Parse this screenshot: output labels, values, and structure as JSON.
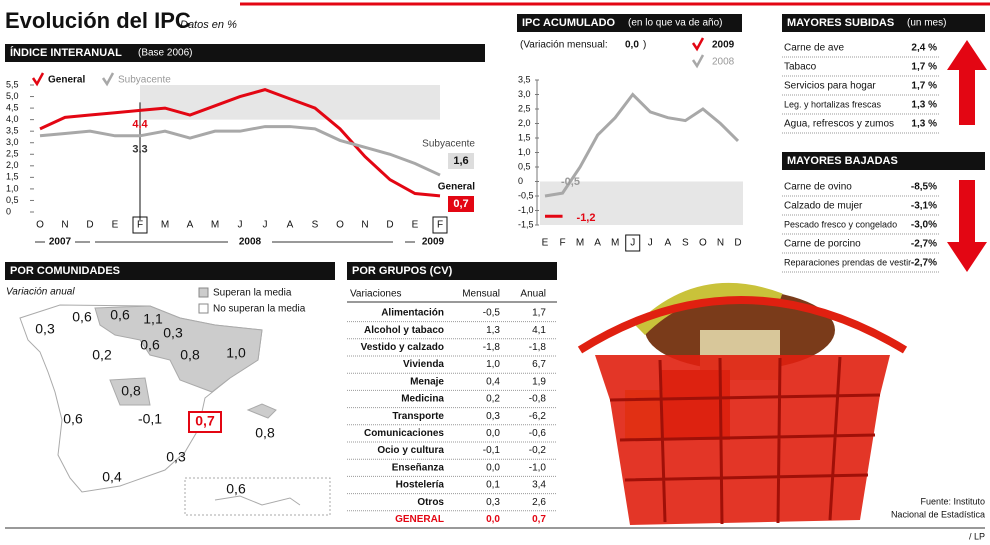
{
  "header": {
    "title": "Evolución del IPC",
    "subtitle": "Datos en %"
  },
  "chart_data": [
    {
      "type": "line",
      "title": "ÍNDICE INTERANUAL",
      "title_note": "(Base 2006)",
      "categories": [
        "O",
        "N",
        "D",
        "E",
        "F",
        "M",
        "A",
        "M",
        "J",
        "J",
        "A",
        "S",
        "O",
        "N",
        "D",
        "E",
        "F"
      ],
      "year_labels": [
        "2007",
        "2008",
        "2009"
      ],
      "series": [
        {
          "name": "General",
          "color": "#e30613",
          "values": [
            3.6,
            4.1,
            4.2,
            4.3,
            4.4,
            4.5,
            4.2,
            4.6,
            5.0,
            5.3,
            4.9,
            4.5,
            3.6,
            2.4,
            1.4,
            0.8,
            0.7
          ],
          "value_labels": [
            null,
            null,
            null,
            null,
            "4,4",
            null,
            null,
            null,
            null,
            null,
            null,
            null,
            null,
            null,
            null,
            null,
            "0,7"
          ]
        },
        {
          "name": "Subyacente",
          "color": "#a8a8a8",
          "values": [
            3.3,
            3.4,
            3.5,
            3.3,
            3.3,
            3.5,
            3.2,
            3.5,
            3.5,
            3.7,
            3.7,
            3.6,
            3.1,
            2.8,
            2.5,
            2.1,
            1.6
          ],
          "value_labels": [
            null,
            null,
            null,
            null,
            "3,3",
            null,
            null,
            null,
            null,
            null,
            null,
            null,
            null,
            null,
            null,
            null,
            "1,6"
          ]
        }
      ],
      "ylim": [
        0,
        5.5
      ],
      "yticks": [
        0,
        {
          "value": 0.5,
          "label": "0,5"
        },
        {
          "value": 1,
          "label": "1,0"
        },
        {
          "value": 1.5,
          "label": "1,5"
        },
        {
          "value": 2,
          "label": "2,0"
        },
        {
          "value": 2.5,
          "label": "2,5"
        },
        {
          "value": 3,
          "label": "3,0"
        },
        {
          "value": 3.5,
          "label": "3,5"
        },
        {
          "value": 4,
          "label": "4,0"
        },
        {
          "value": 4.5,
          "label": "4,5"
        },
        {
          "value": 5,
          "label": "5,0"
        },
        {
          "value": 5.5,
          "label": "5,5"
        }
      ]
    },
    {
      "type": "line",
      "title": "IPC ACUMULADO",
      "title_note": "(en lo que va de año)",
      "note": "(Variación mensual:",
      "note_value": "0,0",
      "note_end": ")",
      "categories": [
        "E",
        "F",
        "M",
        "A",
        "M",
        "J",
        "J",
        "A",
        "S",
        "O",
        "N",
        "D"
      ],
      "series": [
        {
          "name": "2009",
          "color": "#e30613",
          "values": [
            -1.2,
            -1.2,
            null,
            null,
            null,
            null,
            null,
            null,
            null,
            null,
            null,
            null
          ],
          "value_labels": [
            null,
            "-1,2",
            null,
            null,
            null,
            null,
            null,
            null,
            null,
            null,
            null,
            null
          ]
        },
        {
          "name": "2008",
          "color": "#a8a8a8",
          "values": [
            -0.5,
            -0.4,
            0.5,
            1.6,
            2.2,
            3.0,
            2.4,
            2.2,
            2.1,
            2.5,
            2.0,
            1.4
          ],
          "value_labels": [
            "-0,5",
            null,
            null,
            null,
            null,
            null,
            null,
            null,
            null,
            null,
            null,
            null
          ]
        }
      ],
      "ylim": [
        -1.5,
        3.5
      ],
      "yticks": [
        {
          "value": -1.5,
          "label": "-1,5"
        },
        {
          "value": -1,
          "label": "-1,0"
        },
        {
          "value": -0.5,
          "label": "-0,5"
        },
        0,
        {
          "value": 0.5,
          "label": "0,5"
        },
        {
          "value": 1,
          "label": "1,0"
        },
        {
          "value": 1.5,
          "label": "1,5"
        },
        {
          "value": 2,
          "label": "2,0"
        },
        {
          "value": 2.5,
          "label": "2,5"
        },
        {
          "value": 3,
          "label": "3,0"
        },
        {
          "value": 3.5,
          "label": "3,5"
        }
      ]
    }
  ],
  "subidas": {
    "title": "MAYORES SUBIDAS",
    "title_note": "(un mes)",
    "rows": [
      [
        "Carne de ave",
        "2,4 %"
      ],
      [
        "Tabaco",
        "1,7 %"
      ],
      [
        "Servicios para hogar",
        "1,7 %"
      ],
      [
        "Leg. y hortalizas frescas",
        "1,3 %"
      ],
      [
        "Agua, refrescos y zumos",
        "1,3 %"
      ]
    ]
  },
  "bajadas": {
    "title": "MAYORES BAJADAS",
    "rows": [
      [
        "Carne de ovino",
        "-8,5%"
      ],
      [
        "Calzado de mujer",
        "-3,1%"
      ],
      [
        "Pescado fresco y congelado",
        "-3,0%"
      ],
      [
        "Carne de porcino",
        "-2,7%"
      ],
      [
        "Reparaciones prendas de vestir",
        "-2,7%"
      ]
    ]
  },
  "comunidades": {
    "title": "POR COMUNIDADES",
    "subtitle": "Variación anual",
    "legend": [
      "Superan la media",
      "No superan la media"
    ],
    "values": [
      "0,3",
      "0,6",
      "0,6",
      "1,1",
      "0,3",
      "0,2",
      "0,6",
      "0,8",
      "1,0",
      "0,8",
      "0,6",
      "-0,1",
      "0,7",
      "0,8",
      "0,3",
      "0,4",
      "0,6"
    ]
  },
  "grupos": {
    "title": "POR GRUPOS (CV)",
    "columns": [
      "Variaciones",
      "Mensual",
      "Anual"
    ],
    "rows": [
      [
        "Alimentación",
        "-0,5",
        "1,7"
      ],
      [
        "Alcohol y tabaco",
        "1,3",
        "4,1"
      ],
      [
        "Vestido y calzado",
        "-1,8",
        "-1,8"
      ],
      [
        "Vivienda",
        "1,0",
        "6,7"
      ],
      [
        "Menaje",
        "0,4",
        "1,9"
      ],
      [
        "Medicina",
        "0,2",
        "-0,8"
      ],
      [
        "Transporte",
        "0,3",
        "-6,2"
      ],
      [
        "Comunicaciones",
        "0,0",
        "-0,6"
      ],
      [
        "Ocio y cultura",
        "-0,1",
        "-0,2"
      ],
      [
        "Enseñanza",
        "0,0",
        "-1,0"
      ],
      [
        "Hostelería",
        "0,1",
        "3,4"
      ],
      [
        "Otros",
        "0,3",
        "2,6"
      ]
    ],
    "total": [
      "GENERAL",
      "0,0",
      "0,7"
    ]
  },
  "footer": {
    "source": [
      "Fuente: Instituto",
      "Nacional de Estadística"
    ],
    "credit": "/ LP"
  }
}
